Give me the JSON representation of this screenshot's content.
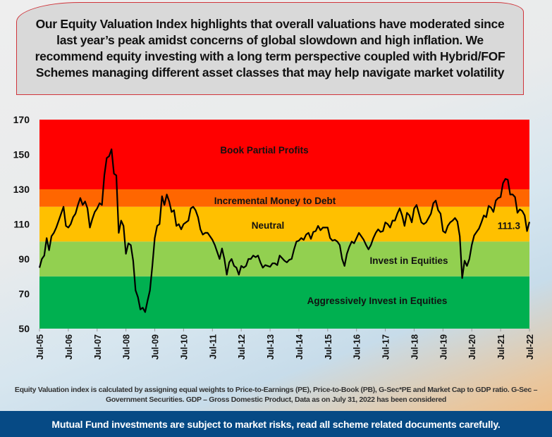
{
  "headline": "Our Equity Valuation Index highlights that overall valuations have moderated since last year’s peak amidst concerns of global slowdown and high inflation. We recommend equity investing with a long term perspective coupled with Hybrid/FOF Schemes managing different asset classes that may help navigate market volatility",
  "footnote": "Equity Valuation index is calculated by assigning equal weights to Price-to-Earnings (PE), Price-to-Book (PB), G-Sec*PE and Market Cap to GDP ratio. G-Sec – Government Securities. GDP – Gross Domestic Product, Data as on July 31, 2022 has been considered",
  "disclaimer": "Mutual Fund investments are subject to market risks, read all scheme related documents carefully.",
  "chart_data": {
    "type": "line",
    "title": "",
    "xlabel": "",
    "ylabel": "",
    "ylim": [
      50,
      170
    ],
    "yticks": [
      "50",
      "70",
      "90",
      "110",
      "130",
      "150",
      "170"
    ],
    "xticks": [
      "Jul-05",
      "Jul-06",
      "Jul-07",
      "Jul-08",
      "Jul-09",
      "Jul-10",
      "Jul-11",
      "Jul-12",
      "Jul-13",
      "Jul-14",
      "Jul-15",
      "Jul-16",
      "Jul-17",
      "Jul-18",
      "Jul-19",
      "Jul-20",
      "Jul-21",
      "Jul-22"
    ],
    "grid": false,
    "line_color": "#000000",
    "bands": [
      {
        "label": "Aggressively Invest in Equities",
        "from": 50,
        "to": 80,
        "color": "#00b050"
      },
      {
        "label": "Invest in Equities",
        "from": 80,
        "to": 100,
        "color": "#92d050"
      },
      {
        "label": "Neutral",
        "from": 100,
        "to": 120,
        "color": "#ffc000"
      },
      {
        "label": "Incremental Money to Debt",
        "from": 120,
        "to": 130,
        "color": "#ff6600"
      },
      {
        "label": "Book Partial Profits",
        "from": 130,
        "to": 170,
        "color": "#ff0000"
      }
    ],
    "annotation": {
      "text": "111.3",
      "x": "2022-07",
      "y": 111.3
    },
    "series": [
      {
        "points": [
          [
            "2005-07",
            85
          ],
          [
            "2005-08",
            90
          ],
          [
            "2005-09",
            92
          ],
          [
            "2005-10",
            102
          ],
          [
            "2005-11",
            95
          ],
          [
            "2005-12",
            103
          ],
          [
            "2006-01",
            105
          ],
          [
            "2006-02",
            108
          ],
          [
            "2006-03",
            112
          ],
          [
            "2006-04",
            116
          ],
          [
            "2006-05",
            120
          ],
          [
            "2006-06",
            109
          ],
          [
            "2006-07",
            108
          ],
          [
            "2006-08",
            110
          ],
          [
            "2006-09",
            114
          ],
          [
            "2006-10",
            116
          ],
          [
            "2006-11",
            121
          ],
          [
            "2006-12",
            125
          ],
          [
            "2007-01",
            121
          ],
          [
            "2007-02",
            123
          ],
          [
            "2007-03",
            119
          ],
          [
            "2007-04",
            108
          ],
          [
            "2007-05",
            113
          ],
          [
            "2007-06",
            117
          ],
          [
            "2007-07",
            119
          ],
          [
            "2007-08",
            122
          ],
          [
            "2007-09",
            121
          ],
          [
            "2007-10",
            138
          ],
          [
            "2007-11",
            148
          ],
          [
            "2007-12",
            149
          ],
          [
            "2008-01",
            153
          ],
          [
            "2008-02",
            139
          ],
          [
            "2008-03",
            138
          ],
          [
            "2008-04",
            105
          ],
          [
            "2008-05",
            112
          ],
          [
            "2008-06",
            109
          ],
          [
            "2008-07",
            93
          ],
          [
            "2008-08",
            99
          ],
          [
            "2008-09",
            98
          ],
          [
            "2008-10",
            89
          ],
          [
            "2008-11",
            72
          ],
          [
            "2008-12",
            68
          ],
          [
            "2009-01",
            61
          ],
          [
            "2009-02",
            62
          ],
          [
            "2009-03",
            59.5
          ],
          [
            "2009-04",
            66
          ],
          [
            "2009-05",
            72
          ],
          [
            "2009-06",
            86
          ],
          [
            "2009-07",
            102
          ],
          [
            "2009-08",
            109
          ],
          [
            "2009-09",
            110
          ],
          [
            "2009-10",
            126
          ],
          [
            "2009-11",
            121
          ],
          [
            "2009-12",
            127
          ],
          [
            "2010-01",
            123
          ],
          [
            "2010-02",
            117
          ],
          [
            "2010-03",
            118
          ],
          [
            "2010-04",
            109
          ],
          [
            "2010-05",
            110
          ],
          [
            "2010-06",
            107
          ],
          [
            "2010-07",
            110
          ],
          [
            "2010-08",
            111
          ],
          [
            "2010-09",
            112
          ],
          [
            "2010-10",
            119
          ],
          [
            "2010-11",
            120
          ],
          [
            "2010-12",
            118
          ],
          [
            "2011-01",
            114
          ],
          [
            "2011-02",
            107
          ],
          [
            "2011-03",
            104
          ],
          [
            "2011-04",
            105
          ],
          [
            "2011-05",
            105
          ],
          [
            "2011-06",
            103
          ],
          [
            "2011-07",
            101
          ],
          [
            "2011-08",
            98
          ],
          [
            "2011-09",
            94
          ],
          [
            "2011-10",
            90
          ],
          [
            "2011-11",
            96
          ],
          [
            "2011-12",
            90
          ],
          [
            "2012-01",
            81
          ],
          [
            "2012-02",
            88
          ],
          [
            "2012-03",
            90
          ],
          [
            "2012-04",
            86
          ],
          [
            "2012-05",
            85
          ],
          [
            "2012-06",
            81
          ],
          [
            "2012-07",
            86
          ],
          [
            "2012-08",
            85
          ],
          [
            "2012-09",
            86
          ],
          [
            "2012-10",
            90
          ],
          [
            "2012-11",
            90
          ],
          [
            "2012-12",
            92
          ],
          [
            "2013-01",
            91
          ],
          [
            "2013-02",
            92
          ],
          [
            "2013-03",
            88
          ],
          [
            "2013-04",
            85
          ],
          [
            "2013-05",
            86.5
          ],
          [
            "2013-06",
            86
          ],
          [
            "2013-07",
            85.5
          ],
          [
            "2013-08",
            87.5
          ],
          [
            "2013-09",
            87.5
          ],
          [
            "2013-10",
            86.5
          ],
          [
            "2013-11",
            92
          ],
          [
            "2013-12",
            90.5
          ],
          [
            "2014-01",
            89
          ],
          [
            "2014-02",
            88
          ],
          [
            "2014-03",
            89.5
          ],
          [
            "2014-04",
            90
          ],
          [
            "2014-05",
            95.5
          ],
          [
            "2014-06",
            100
          ],
          [
            "2014-07",
            100.5
          ],
          [
            "2014-08",
            102
          ],
          [
            "2014-09",
            101
          ],
          [
            "2014-10",
            104
          ],
          [
            "2014-11",
            105
          ],
          [
            "2014-12",
            101.5
          ],
          [
            "2015-01",
            105.5
          ],
          [
            "2015-02",
            106
          ],
          [
            "2015-03",
            109
          ],
          [
            "2015-04",
            106.5
          ],
          [
            "2015-05",
            108
          ],
          [
            "2015-06",
            108
          ],
          [
            "2015-07",
            108
          ],
          [
            "2015-08",
            102
          ],
          [
            "2015-09",
            100.5
          ],
          [
            "2015-10",
            101
          ],
          [
            "2015-11",
            100
          ],
          [
            "2015-12",
            98
          ],
          [
            "2016-01",
            90
          ],
          [
            "2016-02",
            86
          ],
          [
            "2016-03",
            93
          ],
          [
            "2016-04",
            97
          ],
          [
            "2016-05",
            100
          ],
          [
            "2016-06",
            99
          ],
          [
            "2016-07",
            102
          ],
          [
            "2016-08",
            105
          ],
          [
            "2016-09",
            103
          ],
          [
            "2016-10",
            101
          ],
          [
            "2016-11",
            98
          ],
          [
            "2016-12",
            95.5
          ],
          [
            "2017-01",
            98
          ],
          [
            "2017-02",
            102
          ],
          [
            "2017-03",
            105
          ],
          [
            "2017-04",
            107
          ],
          [
            "2017-05",
            105.5
          ],
          [
            "2017-06",
            106
          ],
          [
            "2017-07",
            111
          ],
          [
            "2017-08",
            110
          ],
          [
            "2017-09",
            108
          ],
          [
            "2017-10",
            112
          ],
          [
            "2017-11",
            112
          ],
          [
            "2017-12",
            116
          ],
          [
            "2018-01",
            119
          ],
          [
            "2018-02",
            115
          ],
          [
            "2018-03",
            109
          ],
          [
            "2018-04",
            116.5
          ],
          [
            "2018-05",
            115
          ],
          [
            "2018-06",
            111
          ],
          [
            "2018-07",
            119
          ],
          [
            "2018-08",
            121
          ],
          [
            "2018-09",
            116
          ],
          [
            "2018-10",
            111
          ],
          [
            "2018-11",
            110
          ],
          [
            "2018-12",
            111
          ],
          [
            "2019-01",
            113.5
          ],
          [
            "2019-02",
            116
          ],
          [
            "2019-03",
            122
          ],
          [
            "2019-04",
            123.5
          ],
          [
            "2019-05",
            118
          ],
          [
            "2019-06",
            116
          ],
          [
            "2019-07",
            106
          ],
          [
            "2019-08",
            105
          ],
          [
            "2019-09",
            109
          ],
          [
            "2019-10",
            111
          ],
          [
            "2019-11",
            112
          ],
          [
            "2019-12",
            113.5
          ],
          [
            "2020-01",
            111.5
          ],
          [
            "2020-02",
            103
          ],
          [
            "2020-03",
            79
          ],
          [
            "2020-04",
            89
          ],
          [
            "2020-05",
            86
          ],
          [
            "2020-06",
            90
          ],
          [
            "2020-07",
            98
          ],
          [
            "2020-08",
            103.5
          ],
          [
            "2020-09",
            105.5
          ],
          [
            "2020-10",
            107.5
          ],
          [
            "2020-11",
            111
          ],
          [
            "2020-12",
            115
          ],
          [
            "2021-01",
            114
          ],
          [
            "2021-02",
            120.5
          ],
          [
            "2021-03",
            119.5
          ],
          [
            "2021-04",
            117
          ],
          [
            "2021-05",
            123.5
          ],
          [
            "2021-06",
            125
          ],
          [
            "2021-07",
            125.5
          ],
          [
            "2021-08",
            133.5
          ],
          [
            "2021-09",
            136
          ],
          [
            "2021-10",
            135.5
          ],
          [
            "2021-11",
            127
          ],
          [
            "2021-12",
            127
          ],
          [
            "2022-01",
            125.5
          ],
          [
            "2022-02",
            116.5
          ],
          [
            "2022-03",
            118.5
          ],
          [
            "2022-04",
            117.5
          ],
          [
            "2022-05",
            115
          ],
          [
            "2022-06",
            106
          ],
          [
            "2022-07",
            111.3
          ]
        ]
      }
    ]
  }
}
